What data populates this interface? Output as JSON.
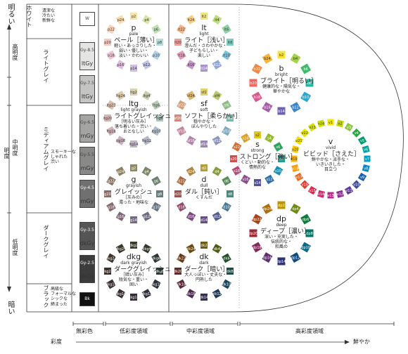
{
  "axis": {
    "top": "明るい",
    "bottom": "暗い",
    "middle": "明度",
    "upper": "高明度",
    "center": "中明度",
    "lower": "低明度",
    "saturation": "彩度",
    "vivid": "鮮やか"
  },
  "groups": [
    {
      "name": "ホワイト",
      "desc": "清潔な\n冷たい\n新鮮な"
    },
    {
      "name": "ライトグレイ",
      "desc": ""
    },
    {
      "name": "ミディアムグレイ",
      "desc": "スモーキーな\nしゃれた\n渋い"
    },
    {
      "name": "ダークグレイ",
      "desc": ""
    },
    {
      "name": "ブラック",
      "desc": "高級な\nフォーマルな\nシックな\n締まった"
    }
  ],
  "achromatic": [
    {
      "code": "W",
      "sub": "",
      "color": "#ffffff"
    },
    {
      "code": "Gy-8.5",
      "sub": "ltGy",
      "color": "#e4e4e2"
    },
    {
      "code": "Gy-7.5",
      "sub": "ltGy",
      "color": "#c4c4c2"
    },
    {
      "code": "Gy-6.5",
      "sub": "mGy",
      "color": "#a4a4a2"
    },
    {
      "code": "Gy-5.5",
      "sub": "mGy",
      "color": "#898987"
    },
    {
      "code": "Gy-4.5",
      "sub": "mGy",
      "color": "#707070"
    },
    {
      "code": "Gy-3.5",
      "sub": "dkGy",
      "color": "#555555"
    },
    {
      "code": "Gy-2.5",
      "sub": "dkGy",
      "color": "#3c3c3c"
    },
    {
      "code": "Bk",
      "sub": "",
      "color": "#111111"
    }
  ],
  "columns": {
    "achromatic": "無彩色",
    "low": "低彩度領域",
    "mid": "中彩度領域",
    "high": "高彩度領域"
  },
  "tones": [
    {
      "id": "p",
      "code": "p",
      "en": "pale",
      "ja": "ペール［薄い］",
      "desc": "軽い・あっさりした・\n弱い・優しい・\n淡い・かわいい",
      "prefix": "p",
      "colors": [
        "#f4e4a6",
        "#d7e6a6",
        "#bfe0b5",
        "#b4ddd5",
        "#b1d3e6",
        "#bdc4e4",
        "#cdbfe2",
        "#dcbfdc",
        "#eec3d4",
        "#f3c8c0",
        "#f7d3b8",
        "#f9ddb0"
      ]
    },
    {
      "id": "lt",
      "code": "lt",
      "en": "light",
      "ja": "ライト［浅い］",
      "desc": "澄んだ・さわやかな・\n子どもらしい・\n楽しい",
      "prefix": "lt",
      "colors": [
        "#ece47c",
        "#bfdc7c",
        "#8fd0a4",
        "#7fcbbf",
        "#80c0dd",
        "#8fa6d8",
        "#a894cf",
        "#c597c8",
        "#e19db8",
        "#ec9f96",
        "#f3b58e",
        "#f6ce84"
      ]
    },
    {
      "id": "b",
      "code": "b",
      "en": "bright",
      "ja": "ブライト［明るい］",
      "desc": "健康的な・陽気な・\n華やかな",
      "prefix": "b",
      "colors": [
        "#f7e43c",
        "#a7d14a",
        "#41b96b",
        "#2ab4a0",
        "#29a7cf",
        "#3a85c8",
        "#6e63b0",
        "#a75aa5",
        "#d85a8d",
        "#ec6662",
        "#f08844",
        "#f6b63a"
      ]
    },
    {
      "id": "ltg",
      "code": "ltg",
      "en": "light grayish",
      "ja": "ライトグレイッシュ",
      "desc": "［明るい灰み］\n落ち着いた・渋い・\nおとなしい",
      "prefix": "ltg",
      "colors": [
        "#d9d2ad",
        "#c7ceac",
        "#b6cab6",
        "#b0c6c1",
        "#b0bfca",
        "#b5b7c7",
        "#bfb3c5",
        "#c9b2c0",
        "#d1b3b8",
        "#d6b7b0",
        "#d9c0ac",
        "#dac9ac"
      ]
    },
    {
      "id": "sf",
      "code": "sf",
      "en": "soft",
      "ja": "ソフト［柔らかい］",
      "desc": "穏やかな・\nぼんやりした",
      "prefix": "sf",
      "colors": [
        "#e2d16b",
        "#b9c86f",
        "#8fbb88",
        "#7fb6a7",
        "#7fa9c0",
        "#8a94bc",
        "#9c86b3",
        "#b083a9",
        "#c4859b",
        "#cc8a83",
        "#d49e78",
        "#dbb870"
      ]
    },
    {
      "id": "s",
      "code": "s",
      "en": "strong",
      "ja": "ストロング［強い］",
      "desc": "くどい・動的な・\n情熱的な",
      "prefix": "s",
      "colors": [
        "#dfc91f",
        "#93b92d",
        "#2ea25a",
        "#1b9d88",
        "#1b8eb4",
        "#2b6fac",
        "#57509a",
        "#8c4a8f",
        "#b84a76",
        "#cc4f4d",
        "#d26f33",
        "#dca026"
      ]
    },
    {
      "id": "v",
      "code": "v",
      "en": "vivid",
      "ja": "ビビッド［さえた］",
      "desc": "鮮やかな・派手な・\nいきいきした・\n目立つ",
      "prefix": "v",
      "colors": [
        "#f2e500",
        "#c3d600",
        "#8cc63f",
        "#22ac38",
        "#009b6b",
        "#00a3a0",
        "#00a0c6",
        "#0086c9",
        "#1d5fad",
        "#3c4a9e",
        "#5e3a98",
        "#8a2e93",
        "#b4288a",
        "#d6246e",
        "#e6244a",
        "#e83a2d",
        "#ec6a1d",
        "#f39a12",
        "#f8b500",
        "#f9cc00",
        "#f4e000",
        "#e8e300",
        "#d9e000",
        "#cde000"
      ]
    },
    {
      "id": "g",
      "code": "g",
      "en": "grayish",
      "ja": "グレイッシュ",
      "desc": "［灰みの］\n濁った・地味な",
      "prefix": "g",
      "colors": [
        "#8e8a64",
        "#7c8566",
        "#6c8070",
        "#677c7a",
        "#667482",
        "#6c6d80",
        "#766a7e",
        "#7e6878",
        "#866a70",
        "#8a6f68",
        "#8c7866",
        "#8e8264"
      ]
    },
    {
      "id": "d",
      "code": "d",
      "en": "dull",
      "ja": "ダル［鈍い］",
      "desc": "くすんだ",
      "prefix": "d",
      "colors": [
        "#b29f3a",
        "#8a9a3f",
        "#5a8c5b",
        "#4c8779",
        "#4a7b93",
        "#535f90",
        "#664f85",
        "#7b4b7b",
        "#904d68",
        "#9a5350",
        "#a56a45",
        "#ae8740"
      ]
    },
    {
      "id": "dp",
      "code": "dp",
      "en": "deep",
      "ja": "ディープ［濃い］",
      "desc": "深い・充実した・\n伝統的な・\n和風の",
      "prefix": "dp",
      "colors": [
        "#b99500",
        "#6e8a12",
        "#0f7a3b",
        "#0a7466",
        "#0a6a8a",
        "#10497e",
        "#2f3375",
        "#5d2d6e",
        "#842a5a",
        "#9a2a35",
        "#a4441a",
        "#ae6e0a"
      ]
    },
    {
      "id": "dkg",
      "code": "dkg",
      "en": "dark grayish",
      "ja": "ダークグレイッシュ",
      "desc": "［暗い灰み］\n陰気な・重い・\n固い",
      "prefix": "dkg",
      "colors": [
        "#3d3b2b",
        "#35392b",
        "#2e3731",
        "#2c3636",
        "#2c3239",
        "#2f3038",
        "#352e37",
        "#382d34",
        "#3b2e30",
        "#3c302d",
        "#3d332b",
        "#3d382b"
      ]
    },
    {
      "id": "dk",
      "code": "dk",
      "en": "dark",
      "ja": "ダーク［暗い］",
      "desc": "大人っぽい・丈夫な・\n円熟した",
      "prefix": "dk",
      "colors": [
        "#6b5c12",
        "#4f5915",
        "#234f2c",
        "#1b4c46",
        "#1a465a",
        "#1f3857",
        "#33304f",
        "#4a2b4a",
        "#5c2a3c",
        "#622c2a",
        "#66381a",
        "#694a12"
      ]
    }
  ]
}
